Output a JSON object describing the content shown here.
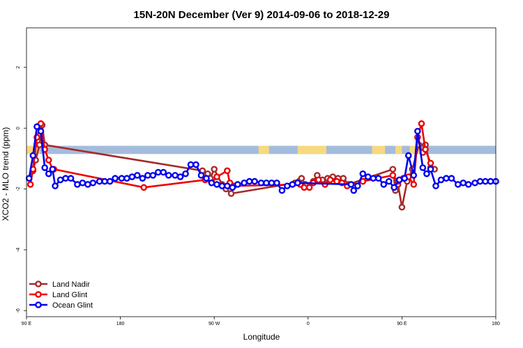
{
  "chart_data": {
    "type": "line",
    "title": "15N-20N December (Ver 9)   2014-09-06 to 2018-12-29",
    "xlabel": "Longitude",
    "ylabel": "XCO2 - MLO trend (ppm)",
    "xlim": [
      90,
      450
    ],
    "ylim": [
      -6.2,
      3.3
    ],
    "x_ticks": [
      {
        "value": 90,
        "label": "90 E"
      },
      {
        "value": 162,
        "label": "180"
      },
      {
        "value": 234,
        "label": "90 W"
      },
      {
        "value": 306,
        "label": "0"
      },
      {
        "value": 378,
        "label": "90 E"
      },
      {
        "value": 450,
        "label": "180"
      }
    ],
    "y_ticks": [
      {
        "value": 2,
        "label": "2"
      },
      {
        "value": 0,
        "label": "0"
      },
      {
        "value": -2,
        "label": "-2"
      },
      {
        "value": -4,
        "label": "-4"
      },
      {
        "value": -6,
        "label": "-6"
      }
    ],
    "land_band": {
      "y_top": -0.58,
      "y_bottom": -0.85,
      "ocean_color": "#a4bcdc",
      "land_color": "#f7d97e",
      "land_ranges": [
        [
          90,
          100
        ],
        [
          268,
          276
        ],
        [
          298,
          320
        ],
        [
          355,
          365
        ],
        [
          373,
          378
        ],
        [
          384,
          392
        ]
      ]
    },
    "grid": false,
    "legend_position": "bottom-left",
    "series": [
      {
        "name": "Land Nadir",
        "color": "#a52a2a",
        "x": [
          92,
          95,
          97,
          100,
          102,
          104,
          225,
          229,
          231,
          234,
          240,
          243,
          247,
          296,
          299,
          301,
          304,
          310,
          313,
          317,
          321,
          325,
          329,
          333,
          337,
          371,
          373,
          375,
          378,
          382,
          386,
          391,
          394,
          396,
          400,
          403
        ],
        "y": [
          -1.65,
          -1.4,
          -1.05,
          -0.55,
          0.1,
          -0.55,
          -1.4,
          -1.5,
          -1.65,
          -1.35,
          -1.85,
          -2.0,
          -2.15,
          -1.8,
          -1.75,
          -1.65,
          -1.85,
          -1.75,
          -1.55,
          -1.7,
          -1.65,
          -1.6,
          -1.65,
          -1.65,
          -1.85,
          -1.35,
          -2.05,
          -1.85,
          -2.6,
          -1.75,
          -1.35,
          -0.55,
          -0.8,
          -0.55,
          -1.3,
          -1.35
        ]
      },
      {
        "name": "Land Glint",
        "color": "#ee0000",
        "x": [
          93,
          95,
          98,
          101,
          104,
          107,
          110,
          111,
          180,
          227,
          232,
          236,
          244,
          246,
          249,
          300,
          303,
          307,
          310,
          314,
          319,
          323,
          328,
          332,
          336,
          342,
          348,
          371,
          375,
          379,
          383,
          387,
          390,
          393,
          396,
          400
        ],
        "y": [
          -1.85,
          -1.35,
          -0.3,
          0.15,
          -0.7,
          -1.05,
          -1.35,
          -1.35,
          -1.95,
          -1.7,
          -1.8,
          -1.6,
          -1.4,
          -1.8,
          -1.9,
          -1.85,
          -1.95,
          -1.95,
          -1.8,
          -1.7,
          -1.85,
          -1.7,
          -1.75,
          -1.8,
          -1.9,
          -1.9,
          -1.75,
          -1.55,
          -1.75,
          -1.65,
          -1.6,
          -1.85,
          -0.3,
          0.15,
          -0.7,
          -1.15
        ]
      },
      {
        "name": "Ocean Glint",
        "color": "#0000ee",
        "x": [
          92,
          95,
          98,
          101,
          104,
          107,
          110,
          112,
          116,
          120,
          124,
          129,
          133,
          137,
          141,
          146,
          150,
          154,
          158,
          163,
          167,
          171,
          175,
          179,
          183,
          187,
          191,
          195,
          199,
          204,
          208,
          212,
          216,
          220,
          224,
          228,
          232,
          236,
          240,
          244,
          248,
          252,
          257,
          261,
          265,
          270,
          274,
          278,
          282,
          286,
          290,
          294,
          298,
          339,
          341,
          344,
          348,
          352,
          356,
          360,
          364,
          368,
          372,
          376,
          380,
          383,
          387,
          390,
          394,
          397,
          400,
          404,
          408,
          412,
          416,
          421,
          425,
          429,
          434,
          438,
          442,
          446,
          450
        ],
        "y": [
          -1.65,
          -0.9,
          0.05,
          -0.1,
          -1.3,
          -1.5,
          -1.35,
          -1.9,
          -1.7,
          -1.65,
          -1.65,
          -1.85,
          -1.8,
          -1.85,
          -1.8,
          -1.75,
          -1.75,
          -1.75,
          -1.65,
          -1.65,
          -1.65,
          -1.6,
          -1.55,
          -1.65,
          -1.55,
          -1.55,
          -1.45,
          -1.45,
          -1.55,
          -1.55,
          -1.6,
          -1.5,
          -1.2,
          -1.2,
          -1.55,
          -1.65,
          -1.8,
          -1.85,
          -1.9,
          -1.9,
          -1.95,
          -1.85,
          -1.8,
          -1.75,
          -1.75,
          -1.8,
          -1.8,
          -1.8,
          -1.8,
          -2.05,
          -1.9,
          -1.85,
          -1.8,
          -1.85,
          -2.05,
          -1.9,
          -1.5,
          -1.6,
          -1.65,
          -1.65,
          -1.85,
          -1.75,
          -1.95,
          -1.7,
          -1.65,
          -0.9,
          -1.55,
          -0.1,
          -1.3,
          -1.5,
          -1.35,
          -1.9,
          -1.7,
          -1.65,
          -1.65,
          -1.85,
          -1.8,
          -1.85,
          -1.8,
          -1.75,
          -1.75,
          -1.75,
          -1.75
        ]
      }
    ]
  }
}
